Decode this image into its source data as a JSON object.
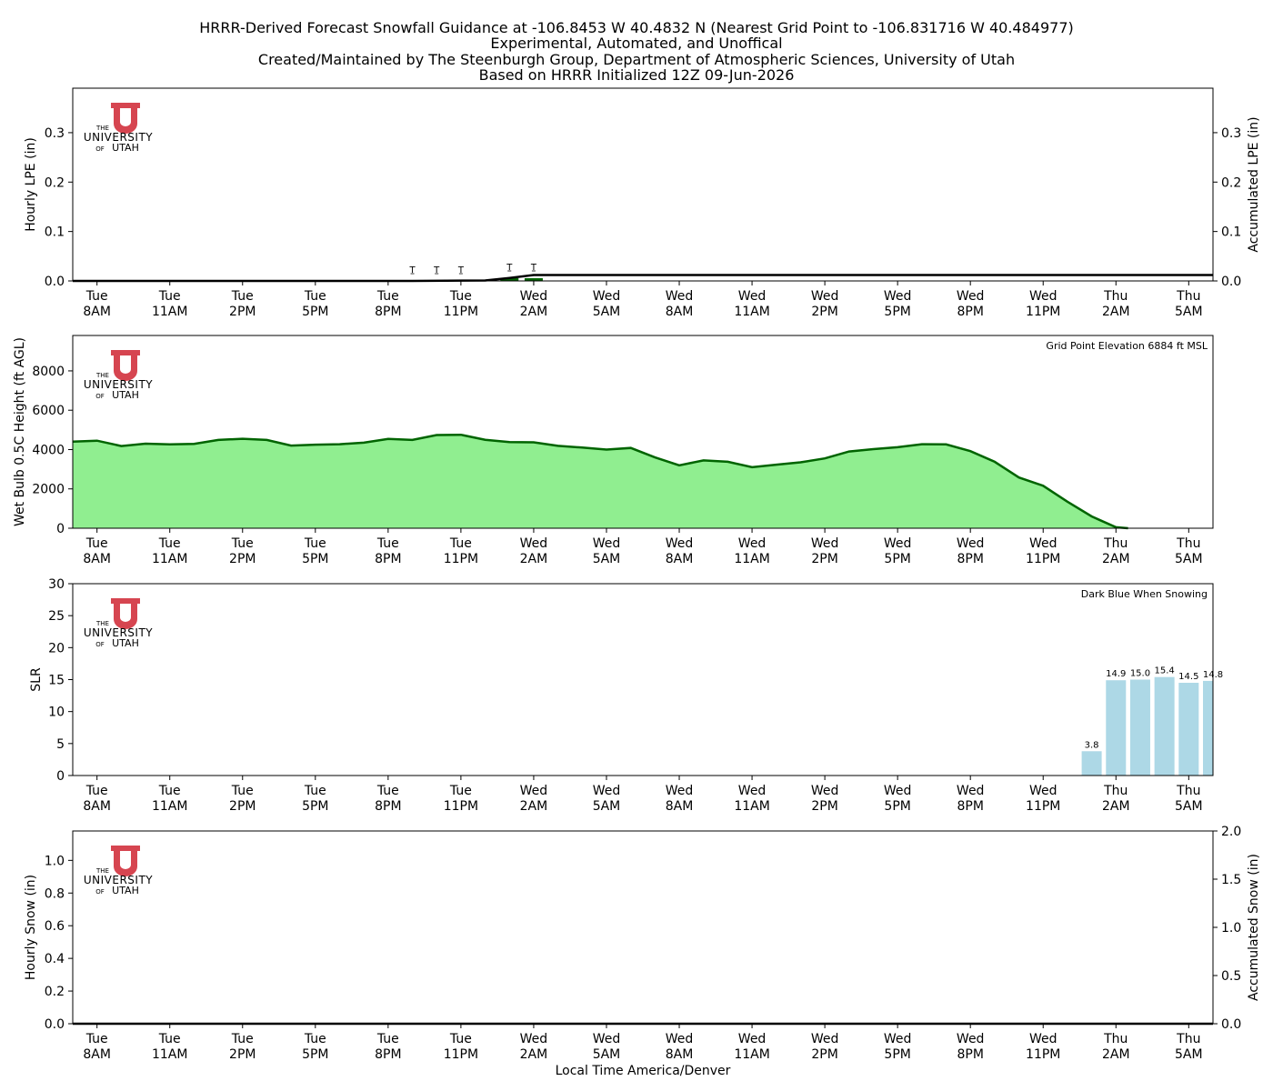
{
  "title_lines": [
    "HRRR-Derived Forecast Snowfall Guidance at -106.8453 W 40.4832 N (Nearest Grid Point to -106.831716 W 40.484977)",
    "Experimental, Automated, and Unoffical",
    "Created/Maintained by The Steenburgh Group, Department of Atmospheric Sciences, University of Utah",
    "Based on HRRR Initialized 12Z 09-Jun-2026"
  ],
  "logo": {
    "word_top": "THE",
    "word_mid": "UNIVERSITY",
    "word_of": "OF",
    "word_bot": "UTAH",
    "color": "#d64550"
  },
  "x_axis": {
    "label": "Local Time America/Denver",
    "range_hours": [
      -1,
      46
    ],
    "ticks": [
      {
        "h": 0,
        "day": "Tue",
        "time": "8AM"
      },
      {
        "h": 3,
        "day": "Tue",
        "time": "11AM"
      },
      {
        "h": 6,
        "day": "Tue",
        "time": "2PM"
      },
      {
        "h": 9,
        "day": "Tue",
        "time": "5PM"
      },
      {
        "h": 12,
        "day": "Tue",
        "time": "8PM"
      },
      {
        "h": 15,
        "day": "Tue",
        "time": "11PM"
      },
      {
        "h": 18,
        "day": "Wed",
        "time": "2AM"
      },
      {
        "h": 21,
        "day": "Wed",
        "time": "5AM"
      },
      {
        "h": 24,
        "day": "Wed",
        "time": "8AM"
      },
      {
        "h": 27,
        "day": "Wed",
        "time": "11AM"
      },
      {
        "h": 30,
        "day": "Wed",
        "time": "2PM"
      },
      {
        "h": 33,
        "day": "Wed",
        "time": "5PM"
      },
      {
        "h": 36,
        "day": "Wed",
        "time": "8PM"
      },
      {
        "h": 39,
        "day": "Wed",
        "time": "11PM"
      },
      {
        "h": 42,
        "day": "Thu",
        "time": "2AM"
      },
      {
        "h": 45,
        "day": "Thu",
        "time": "5AM"
      }
    ]
  },
  "chart_data": [
    {
      "type": "bar",
      "ylabel": "Hourly LPE (in)",
      "ylabel_right": "Accumulated LPE (in)",
      "ylim": [
        0,
        0.39
      ],
      "yticks": [
        "0.0",
        "0.1",
        "0.2",
        "0.3"
      ],
      "yticks_right": [
        "0.0",
        "0.1",
        "0.2",
        "0.3"
      ],
      "ylim_right": [
        0,
        0.39
      ],
      "bar_color": "#006400",
      "hourly_bars": [
        {
          "h": 17,
          "v": 0.003
        },
        {
          "h": 18,
          "v": 0.005
        }
      ],
      "trace_markers": [
        {
          "h": 13,
          "label": "T"
        },
        {
          "h": 14,
          "label": "T"
        },
        {
          "h": 15,
          "label": "T"
        },
        {
          "h": 17,
          "label": "T"
        },
        {
          "h": 18,
          "label": "T"
        }
      ],
      "accumulated": {
        "x": [
          -1,
          13,
          16,
          17,
          18,
          46
        ],
        "y": [
          0,
          0,
          0.001,
          0.006,
          0.012,
          0.012
        ]
      }
    },
    {
      "type": "area",
      "ylabel": "Wet Bulb 0.5C Height (ft AGL)",
      "ylim": [
        0,
        9800
      ],
      "yticks": [
        "0",
        "2000",
        "4000",
        "6000",
        "8000"
      ],
      "annotation": "Grid Point Elevation 6884 ft MSL",
      "fill_color": "#90ee90",
      "line_color": "#006400",
      "x": [
        -1,
        0,
        1,
        2,
        3,
        4,
        5,
        6,
        7,
        8,
        9,
        10,
        11,
        12,
        13,
        14,
        15,
        16,
        17,
        18,
        19,
        20,
        21,
        22,
        23,
        24,
        25,
        26,
        27,
        28,
        29,
        30,
        31,
        32,
        33,
        34,
        35,
        36,
        37,
        38,
        39,
        40,
        41,
        41.4,
        42,
        42.5,
        46
      ],
      "y": [
        4400,
        4450,
        4180,
        4300,
        4260,
        4290,
        4490,
        4550,
        4490,
        4200,
        4250,
        4270,
        4350,
        4540,
        4490,
        4740,
        4750,
        4500,
        4380,
        4370,
        4190,
        4100,
        4000,
        4080,
        3600,
        3200,
        3450,
        3380,
        3100,
        3230,
        3350,
        3550,
        3900,
        4020,
        4120,
        4270,
        4260,
        3920,
        3380,
        2580,
        2160,
        1350,
        600,
        380,
        50,
        0,
        0
      ]
    },
    {
      "type": "bar",
      "ylabel": "SLR",
      "ylim": [
        0,
        30
      ],
      "yticks": [
        "0",
        "5",
        "10",
        "15",
        "20",
        "25",
        "30"
      ],
      "annotation": "Dark Blue When Snowing",
      "bar_color": "#add8e6",
      "categories": [
        41,
        42,
        43,
        44,
        45,
        46
      ],
      "values": [
        3.8,
        14.9,
        15.0,
        15.4,
        14.5,
        14.8
      ],
      "value_labels": [
        "3.8",
        "14.9",
        "15.0",
        "15.4",
        "14.5",
        "14.8"
      ]
    },
    {
      "type": "bar",
      "ylabel": "Hourly Snow (in)",
      "ylabel_right": "Accumulated Snow (in)",
      "ylim": [
        0,
        1.18
      ],
      "yticks": [
        "0.0",
        "0.2",
        "0.4",
        "0.6",
        "0.8",
        "1.0"
      ],
      "ylim_right": [
        0,
        2.0
      ],
      "yticks_right": [
        "0.0",
        "0.5",
        "1.0",
        "1.5",
        "2.0"
      ],
      "hourly_bars": [],
      "accumulated": {
        "x": [
          -1,
          46
        ],
        "y": [
          0,
          0
        ]
      }
    }
  ]
}
